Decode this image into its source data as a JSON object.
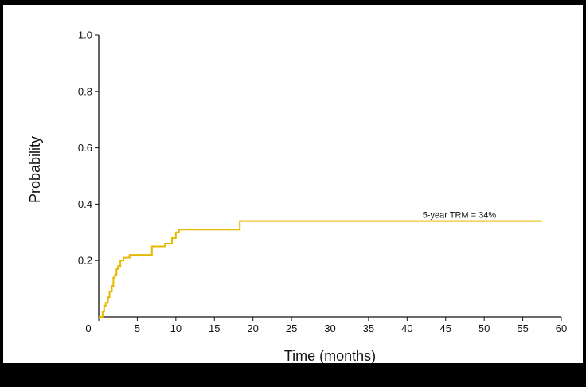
{
  "chart_data": {
    "type": "line",
    "title": "",
    "xlabel": "Time (months)",
    "ylabel": "Probability",
    "xlim": [
      0,
      60
    ],
    "ylim": [
      0,
      1.0
    ],
    "x_ticks": [
      0,
      5,
      10,
      15,
      20,
      25,
      30,
      35,
      40,
      45,
      50,
      55,
      60
    ],
    "x_tick_labels": [
      "0",
      "5",
      "10",
      "15",
      "20",
      "25",
      "30",
      "35",
      "40",
      "45",
      "50",
      "55",
      "60"
    ],
    "y_ticks": [
      0.2,
      0.4,
      0.6,
      0.8,
      1.0
    ],
    "y_tick_labels": [
      "0.2",
      "0.4",
      "0.6",
      "0.8",
      "1.0"
    ],
    "grid": false,
    "legend": "none",
    "series": [
      {
        "color": "#e8b800",
        "step": true,
        "x": [
          0,
          0.5,
          0.7,
          0.9,
          1.2,
          1.4,
          1.7,
          1.9,
          2.1,
          2.3,
          2.5,
          2.8,
          3.2,
          3.6,
          4.0,
          6.9,
          8.6,
          9.5,
          10.0,
          10.4,
          18.3,
          57.5
        ],
        "y": [
          0,
          0.02,
          0.04,
          0.05,
          0.07,
          0.09,
          0.11,
          0.14,
          0.15,
          0.17,
          0.18,
          0.2,
          0.21,
          0.21,
          0.22,
          0.25,
          0.26,
          0.28,
          0.3,
          0.31,
          0.34,
          0.34
        ]
      }
    ],
    "annotations": [
      {
        "text": "5-year TRM = 34%",
        "x": 42,
        "y": 0.36
      }
    ]
  }
}
